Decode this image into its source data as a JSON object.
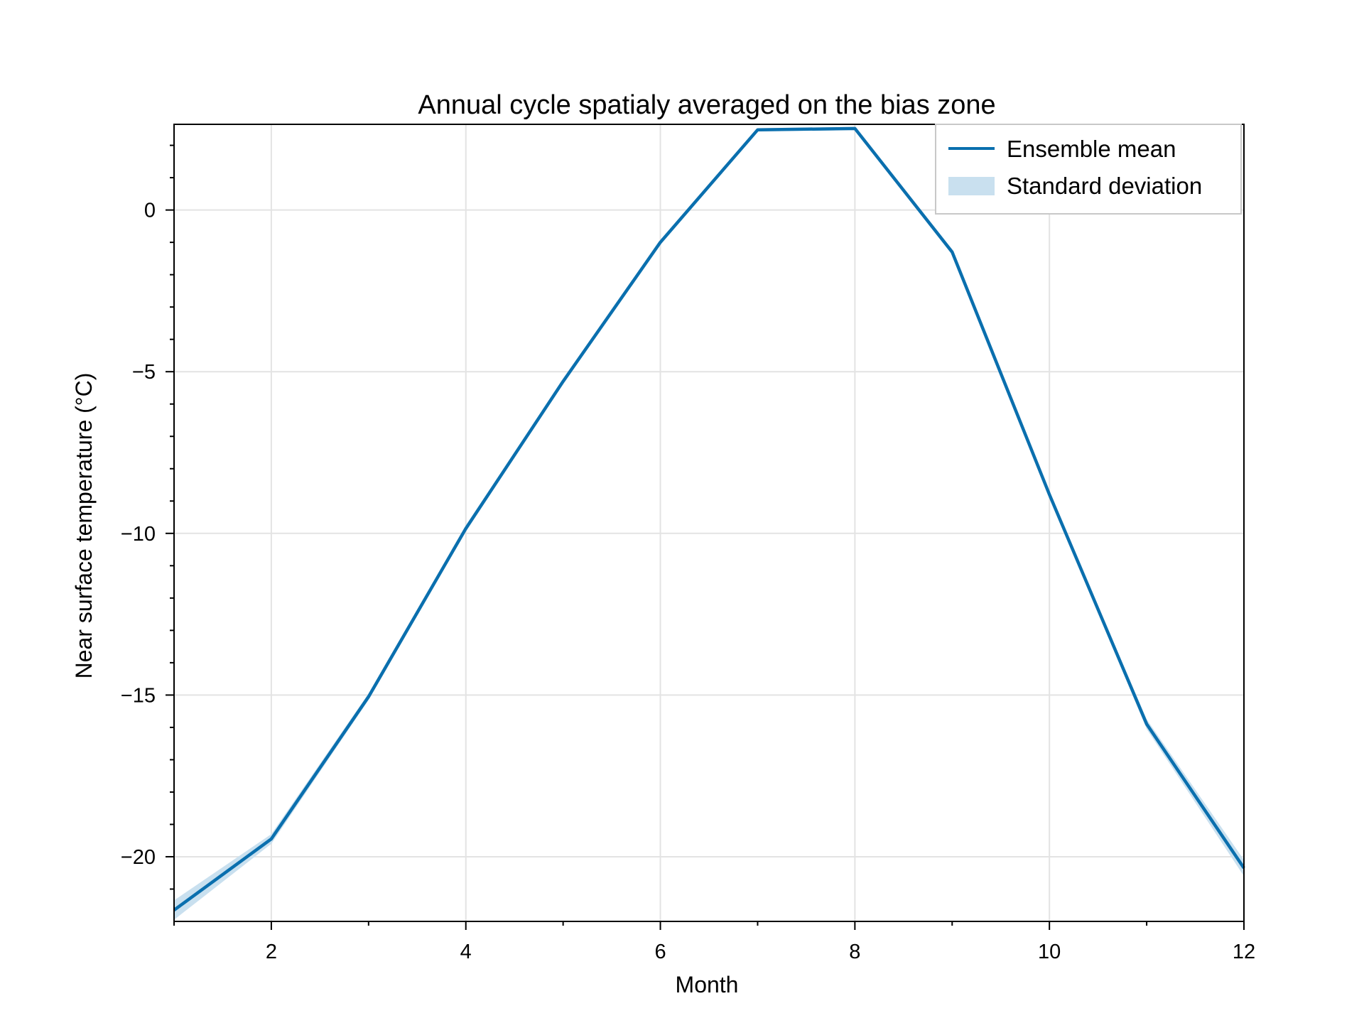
{
  "chart_data": {
    "type": "line",
    "title": "Annual cycle spatialy averaged on the bias zone",
    "xlabel": "Month",
    "ylabel": "Near surface temperature (°C)",
    "xlim": [
      1,
      12
    ],
    "ylim": [
      -22,
      2.65
    ],
    "xticks": [
      2,
      4,
      6,
      8,
      10,
      12
    ],
    "xtick_labels": [
      "2",
      "4",
      "6",
      "8",
      "10",
      "12"
    ],
    "yticks": [
      -20,
      -15,
      -10,
      -5,
      0
    ],
    "ytick_labels": [
      "−20",
      "−15",
      "−10",
      "−5",
      "0"
    ],
    "grid": true,
    "legend": {
      "position": "top-right",
      "entries": [
        "Ensemble mean",
        "Standard deviation"
      ]
    },
    "series": [
      {
        "name": "Ensemble mean",
        "kind": "line",
        "color": "#0a6fae",
        "x": [
          1,
          2,
          3,
          4,
          5,
          6,
          7,
          8,
          9,
          10,
          11,
          12
        ],
        "y": [
          -21.65,
          -19.45,
          -15.05,
          -9.85,
          -5.3,
          -1.0,
          2.48,
          2.52,
          -1.3,
          -8.8,
          -15.9,
          -20.35
        ]
      },
      {
        "name": "Standard deviation",
        "kind": "band",
        "color": "#c9e0ef",
        "x": [
          1,
          2,
          3,
          4,
          5,
          6,
          7,
          8,
          9,
          10,
          11,
          12
        ],
        "lower": [
          -21.95,
          -19.6,
          -15.15,
          -9.95,
          -5.35,
          -1.05,
          2.43,
          2.47,
          -1.35,
          -8.85,
          -16.05,
          -20.6
        ],
        "upper": [
          -21.35,
          -19.3,
          -14.95,
          -9.75,
          -5.25,
          -0.95,
          2.53,
          2.57,
          -1.25,
          -8.75,
          -15.75,
          -20.1
        ]
      }
    ]
  }
}
